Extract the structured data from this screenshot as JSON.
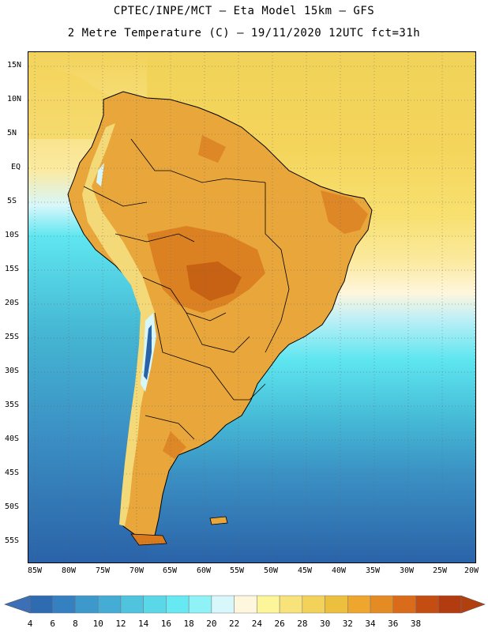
{
  "header": {
    "title_line1": "CPTEC/INPE/MCT –  Eta Model 15km – GFS",
    "title_line2": "2 Metre Temperature (C) – 19/11/2020 12UTC fct=31h"
  },
  "map": {
    "lat_labels": [
      "15N",
      "10N",
      "5N",
      "EQ",
      "5S",
      "10S",
      "15S",
      "20S",
      "25S",
      "30S",
      "35S",
      "40S",
      "45S",
      "50S",
      "55S"
    ],
    "lon_labels": [
      "85W",
      "80W",
      "75W",
      "70W",
      "65W",
      "60W",
      "55W",
      "50W",
      "45W",
      "40W",
      "35W",
      "30W",
      "25W",
      "20W"
    ],
    "ocean_colors": {
      "cold": "#2a62a8",
      "cool": "#3b8fc4",
      "mid": "#43b6d3",
      "cyan": "#5ee6f0",
      "light": "#d7f7fb",
      "warm": "#f6d44e",
      "warmer": "#edc44a"
    },
    "land_colors": {
      "base": "#e8a63b",
      "hot": "#d97a1e",
      "hotter": "#c25a12",
      "andes": "#f3d977",
      "cold": "#2a62a8",
      "snow": "#d7f7fb"
    }
  },
  "colorbar": {
    "labels": [
      "4",
      "6",
      "8",
      "10",
      "12",
      "14",
      "16",
      "18",
      "20",
      "22",
      "24",
      "26",
      "28",
      "30",
      "32",
      "34",
      "36",
      "38"
    ],
    "colors": [
      "#2f6bb0",
      "#3580c0",
      "#3d98cc",
      "#45acd6",
      "#50c4df",
      "#5ad8e8",
      "#66e9f2",
      "#8ef2f7",
      "#d7f7fb",
      "#fff7dd",
      "#fdf59a",
      "#f8e27a",
      "#f2d259",
      "#edbf3f",
      "#eea62e",
      "#e58b24",
      "#da6b1a",
      "#c44e12",
      "#b33b10"
    ],
    "min_arrow_color": "#3b6fb6",
    "max_arrow_color": "#b2400f"
  }
}
